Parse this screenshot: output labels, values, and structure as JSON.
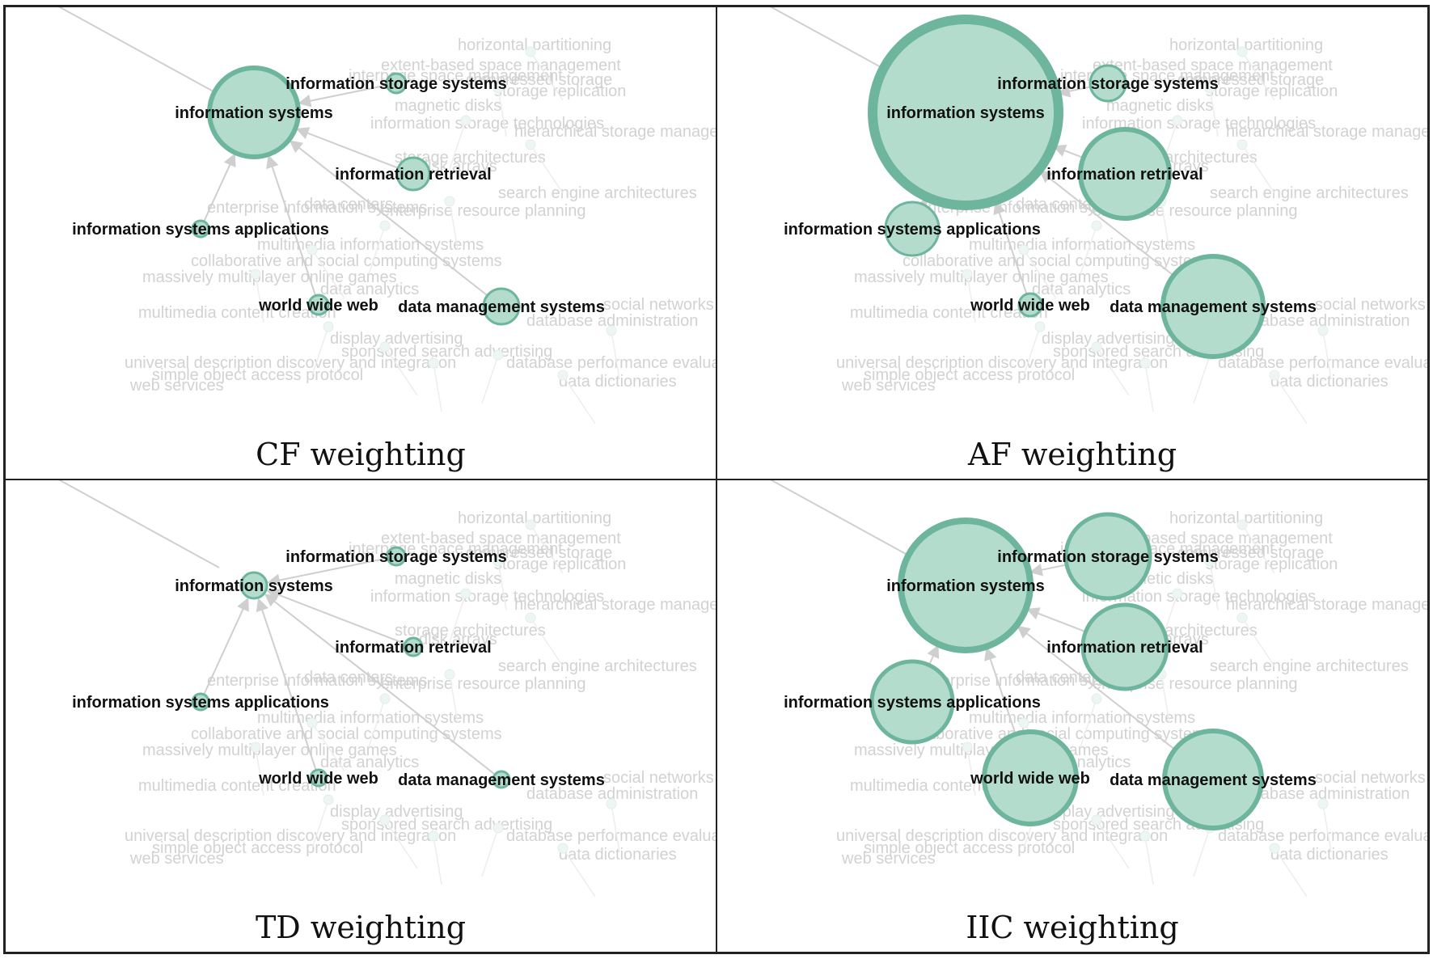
{
  "panels": [
    {
      "caption": "CF weighting",
      "radii": [
        55,
        12,
        20,
        10,
        12,
        22
      ]
    },
    {
      "caption": "AF weighting",
      "radii": [
        115,
        22,
        55,
        33,
        14,
        62
      ]
    },
    {
      "caption": "TD weighting",
      "radii": [
        16,
        11,
        11,
        10,
        10,
        10
      ]
    },
    {
      "caption": "IIC weighting",
      "radii": [
        80,
        52,
        52,
        50,
        57,
        60
      ]
    }
  ],
  "nodes": [
    {
      "id": "information-systems",
      "label": "information systems"
    },
    {
      "id": "information-storage-systems",
      "label": "information storage systems"
    },
    {
      "id": "information-retrieval",
      "label": "information retrieval"
    },
    {
      "id": "information-systems-applications",
      "label": "information systems applications"
    },
    {
      "id": "world-wide-web",
      "label": "world wide web"
    },
    {
      "id": "data-management-systems",
      "label": "data management systems"
    }
  ],
  "background_labels": [
    "horizontal partitioning",
    "extent-based space management",
    "interpage space management",
    "compressed storage",
    "storage replication",
    "magnetic disks",
    "information storage technologies",
    "storage architectures",
    "disk arrays",
    "hierarchical storage management",
    "search engine architectures",
    "enterprise information systems",
    "data centers",
    "enterprise resource planning",
    "collaborative and social computing systems",
    "massively multiplayer online games",
    "multimedia information systems",
    "data analytics",
    "multimedia content creation",
    "display advertising",
    "sponsored search advertising",
    "universal description discovery and integration",
    "simple object access protocol",
    "web services",
    "database administration",
    "database performance evaluation",
    "data dictionaries",
    "social networks"
  ],
  "colors": {
    "node_fill": "#b4dccd",
    "node_stroke": "#6db59d",
    "edge": "#cfcfcf",
    "ghost_text": "#d2d2d2"
  }
}
